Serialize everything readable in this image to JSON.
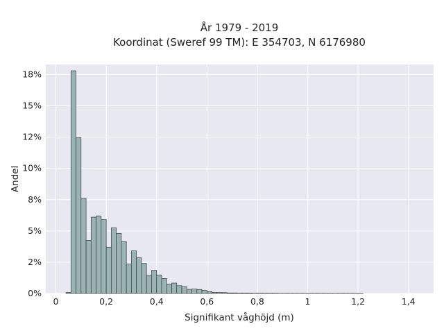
{
  "chart_data": {
    "type": "bar",
    "title": "År 1979 - 2019",
    "subtitle": "Koordinat (Sweref 99 TM): E 354703, N 6176980",
    "xlabel": "Signifikant våghöjd (m)",
    "ylabel": "Andel",
    "xlim": [
      -0.04,
      1.5
    ],
    "ylim": [
      0,
      0.183
    ],
    "xticks": [
      0,
      0.2,
      0.4,
      0.6,
      0.8,
      1.0,
      1.2,
      1.4
    ],
    "xtick_labels": [
      "0",
      "0,2",
      "0,4",
      "0,6",
      "0,8",
      "1",
      "1,2",
      "1,4"
    ],
    "yticks": [
      0,
      0.025,
      0.05,
      0.075,
      0.1,
      0.125,
      0.15,
      0.175
    ],
    "ytick_labels": [
      "0%",
      "2%",
      "5%",
      "8%",
      "10%",
      "12%",
      "15%",
      "18%"
    ],
    "grid": true,
    "bin_start": 0.04,
    "bin_width": 0.02,
    "values": [
      0.0008,
      0.178,
      0.1245,
      0.076,
      0.0425,
      0.061,
      0.062,
      0.059,
      0.037,
      0.0525,
      0.048,
      0.0415,
      0.0235,
      0.034,
      0.0285,
      0.024,
      0.0145,
      0.0185,
      0.0148,
      0.012,
      0.0075,
      0.0083,
      0.0062,
      0.0055,
      0.0033,
      0.0035,
      0.0032,
      0.0025,
      0.0015,
      0.0009,
      0.0008,
      0.0007,
      0.0004,
      0.0004,
      0.0003,
      0.0003,
      0.0003,
      0.0002,
      0.0002,
      0.0002,
      0.0002,
      0.0002,
      0.0001,
      0.0001,
      0.0001,
      0.0001,
      0.0001,
      0.0001,
      0.0001,
      0.0001,
      0.0001,
      0.0001,
      0.0001,
      0.0001,
      0.0001,
      0.0001,
      0.0001,
      0.0001,
      0.0001
    ],
    "bar_color": "#9ab4b4",
    "bar_edge_color": "#3a3a3a",
    "plot_background": "#e8e8f0",
    "grid_color": "#ffffff"
  }
}
